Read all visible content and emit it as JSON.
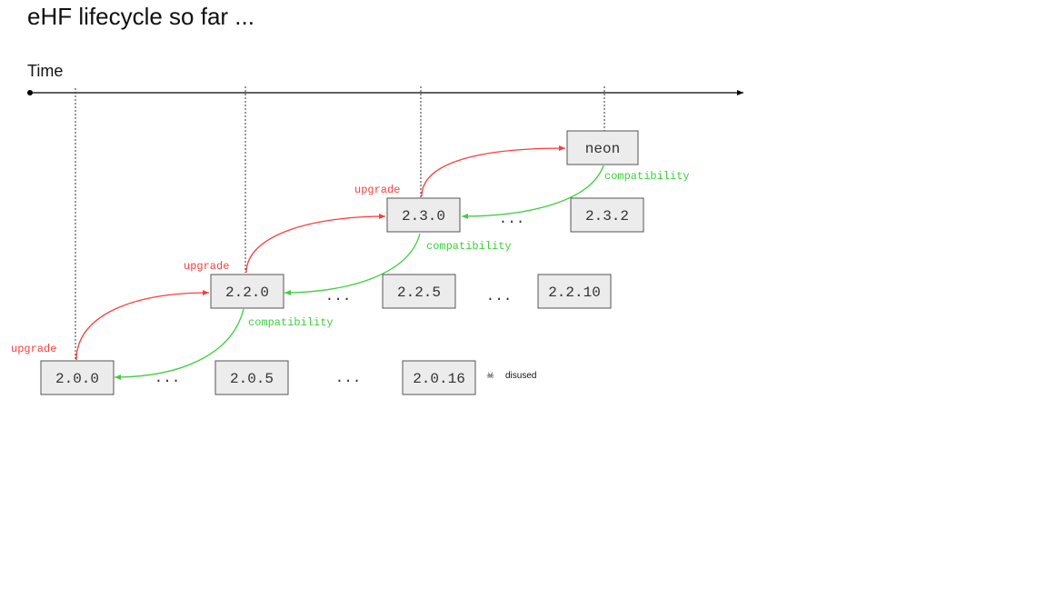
{
  "slide": {
    "title": "eHF lifecycle so far ...",
    "time_label": "Time"
  },
  "versions": {
    "v200": "2.0.0",
    "v205": "2.0.5",
    "v2016": "2.0.16",
    "v220": "2.2.0",
    "v225": "2.2.5",
    "v2210": "2.2.10",
    "v230": "2.3.0",
    "v232": "2.3.2",
    "neon": "neon"
  },
  "ellipsis": "...",
  "labels": {
    "upgrade": "upgrade",
    "compatibility": "compatibility",
    "disused": "disused",
    "disused_icon": "☠"
  },
  "colors": {
    "upgrade": "#ff3b3b",
    "compatibility": "#3ecf3e",
    "box_fill": "#ececec",
    "box_stroke": "#555555",
    "axis": "#000000"
  }
}
